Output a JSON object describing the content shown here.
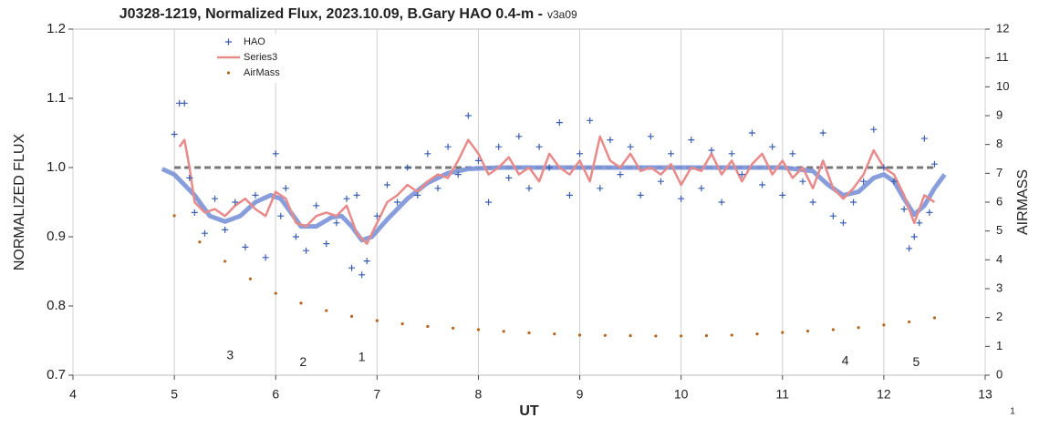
{
  "chart_data": {
    "type": "scatter",
    "title": "J0328-1219, Normalized Flux, 2023.10.09, B.Gary HAO 0.4-m -",
    "version": "v3a09",
    "x_label": "UT",
    "y_label": "NORMALIZED FLUX",
    "y2_label": "AIRMASS",
    "xlim": [
      4,
      13
    ],
    "xticks": [
      4,
      5,
      6,
      7,
      8,
      9,
      10,
      11,
      12,
      13
    ],
    "ylim": [
      0.7,
      1.2
    ],
    "yticks": [
      0.7,
      0.8,
      0.9,
      {
        "value": 1,
        "label": "1.0"
      },
      1.1,
      1.2
    ],
    "y2lim": [
      0,
      12
    ],
    "y2ticks": [
      0,
      1,
      2,
      3,
      4,
      5,
      6,
      7,
      8,
      9,
      10,
      11,
      12
    ],
    "grid": "x",
    "reference_line": 1,
    "legend": "upper left",
    "footer": "1",
    "annotations": [
      {
        "text": "3",
        "x": 5.55,
        "y": 0.728
      },
      {
        "text": "2",
        "x": 6.27,
        "y": 0.718
      },
      {
        "text": "1",
        "x": 6.85,
        "y": 0.725
      },
      {
        "text": "4",
        "x": 11.62,
        "y": 0.72
      },
      {
        "text": "5",
        "x": 12.32,
        "y": 0.718
      }
    ],
    "series": [
      {
        "name": "HAO",
        "color": "#3a5db0",
        "marker": "cross",
        "x": [
          5.0,
          5.05,
          5.1,
          5.15,
          5.2,
          5.3,
          5.4,
          5.5,
          5.6,
          5.7,
          5.8,
          5.9,
          6.0,
          6.05,
          6.1,
          6.2,
          6.3,
          6.4,
          6.5,
          6.6,
          6.7,
          6.75,
          6.8,
          6.85,
          6.9,
          7.0,
          7.1,
          7.2,
          7.3,
          7.4,
          7.5,
          7.6,
          7.7,
          7.8,
          7.9,
          8.0,
          8.1,
          8.2,
          8.3,
          8.4,
          8.5,
          8.6,
          8.7,
          8.8,
          8.9,
          9.0,
          9.1,
          9.2,
          9.3,
          9.4,
          9.5,
          9.6,
          9.7,
          9.8,
          9.9,
          10.0,
          10.1,
          10.2,
          10.3,
          10.4,
          10.5,
          10.6,
          10.7,
          10.8,
          10.9,
          11.0,
          11.1,
          11.2,
          11.3,
          11.4,
          11.5,
          11.6,
          11.7,
          11.8,
          11.9,
          12.0,
          12.1,
          12.2,
          12.25,
          12.3,
          12.35,
          12.4,
          12.45,
          12.5
        ],
        "values": [
          1.048,
          1.093,
          1.093,
          0.985,
          0.935,
          0.905,
          0.955,
          0.91,
          0.95,
          0.885,
          0.96,
          0.87,
          1.02,
          0.93,
          0.97,
          0.9,
          0.88,
          0.945,
          0.89,
          0.92,
          0.955,
          0.855,
          0.96,
          0.845,
          0.865,
          0.93,
          0.975,
          0.95,
          1.0,
          0.96,
          1.02,
          0.97,
          1.03,
          0.99,
          1.075,
          1.01,
          0.95,
          1.03,
          0.985,
          1.045,
          0.97,
          1.03,
          1.0,
          1.065,
          0.96,
          1.02,
          1.068,
          0.97,
          1.04,
          0.99,
          1.03,
          0.96,
          1.045,
          0.98,
          1.02,
          0.955,
          1.04,
          0.97,
          1.025,
          0.95,
          1.02,
          0.99,
          1.05,
          0.975,
          1.03,
          0.96,
          1.02,
          0.98,
          0.95,
          1.05,
          0.93,
          0.92,
          0.95,
          0.98,
          1.055,
          1.0,
          0.98,
          0.94,
          0.883,
          0.9,
          0.92,
          1.042,
          0.935,
          1.005
        ]
      },
      {
        "name": "Series3",
        "color": "#e88a8a",
        "marker": "line",
        "x": [
          5.05,
          5.1,
          5.15,
          5.2,
          5.3,
          5.4,
          5.5,
          5.6,
          5.7,
          5.8,
          5.9,
          6.0,
          6.1,
          6.2,
          6.3,
          6.4,
          6.5,
          6.6,
          6.7,
          6.8,
          6.9,
          7.0,
          7.1,
          7.2,
          7.3,
          7.4,
          7.5,
          7.6,
          7.7,
          7.8,
          7.9,
          8.0,
          8.1,
          8.2,
          8.3,
          8.4,
          8.5,
          8.6,
          8.7,
          8.8,
          8.9,
          9.0,
          9.1,
          9.2,
          9.3,
          9.4,
          9.5,
          9.6,
          9.7,
          9.8,
          9.9,
          10.0,
          10.1,
          10.2,
          10.3,
          10.4,
          10.5,
          10.6,
          10.7,
          10.8,
          10.9,
          11.0,
          11.1,
          11.2,
          11.3,
          11.4,
          11.5,
          11.6,
          11.7,
          11.8,
          11.9,
          12.0,
          12.1,
          12.2,
          12.3,
          12.4,
          12.5
        ],
        "values": [
          1.03,
          1.04,
          1.0,
          0.95,
          0.935,
          0.94,
          0.93,
          0.945,
          0.955,
          0.94,
          0.93,
          0.965,
          0.955,
          0.92,
          0.915,
          0.93,
          0.935,
          0.93,
          0.945,
          0.905,
          0.89,
          0.92,
          0.95,
          0.96,
          0.975,
          0.965,
          0.98,
          0.99,
          0.985,
          1.01,
          1.04,
          1.02,
          0.99,
          1.0,
          1.015,
          0.99,
          1.0,
          0.98,
          1.02,
          1.0,
          0.99,
          1.01,
          0.98,
          1.045,
          1.01,
          1.0,
          1.02,
          0.995,
          1.0,
          0.99,
          1.005,
          0.975,
          1.0,
          0.995,
          1.02,
          0.99,
          1.01,
          0.98,
          1.005,
          1.02,
          0.99,
          1.01,
          0.985,
          1.0,
          0.97,
          1.01,
          0.97,
          0.955,
          0.97,
          0.99,
          1.025,
          1.0,
          0.99,
          0.96,
          0.92,
          0.96,
          0.95
        ]
      },
      {
        "color": "#7b93d8",
        "marker": "thick-line",
        "x": [
          4.88,
          5.0,
          5.2,
          5.35,
          5.5,
          5.65,
          5.8,
          5.95,
          6.05,
          6.15,
          6.25,
          6.4,
          6.55,
          6.65,
          6.75,
          6.85,
          6.95,
          7.1,
          7.3,
          7.5,
          7.7,
          7.9,
          8.2,
          9.0,
          10.0,
          11.0,
          11.3,
          11.45,
          11.6,
          11.75,
          11.9,
          12.0,
          12.1,
          12.2,
          12.3,
          12.4,
          12.5,
          12.6
        ],
        "values": [
          0.998,
          0.99,
          0.96,
          0.93,
          0.922,
          0.93,
          0.95,
          0.96,
          0.955,
          0.935,
          0.915,
          0.915,
          0.928,
          0.93,
          0.915,
          0.895,
          0.9,
          0.925,
          0.955,
          0.978,
          0.992,
          0.998,
          1.0,
          1.0,
          1.0,
          1.0,
          0.995,
          0.975,
          0.96,
          0.965,
          0.985,
          0.99,
          0.98,
          0.955,
          0.932,
          0.945,
          0.97,
          0.99
        ]
      },
      {
        "name": "AirMass",
        "color": "#b5651d",
        "marker": "dot",
        "axis": "y2",
        "x": [
          5.0,
          5.25,
          5.5,
          5.75,
          6.0,
          6.25,
          6.5,
          6.75,
          7.0,
          7.25,
          7.5,
          7.75,
          8.0,
          8.25,
          8.5,
          8.75,
          9.0,
          9.25,
          9.5,
          9.75,
          10.0,
          10.25,
          10.5,
          10.75,
          11.0,
          11.25,
          11.5,
          11.75,
          12.0,
          12.25,
          12.5
        ],
        "values": [
          5.53,
          4.62,
          3.95,
          3.34,
          2.84,
          2.5,
          2.24,
          2.04,
          1.89,
          1.78,
          1.69,
          1.63,
          1.58,
          1.52,
          1.47,
          1.43,
          1.39,
          1.38,
          1.37,
          1.36,
          1.36,
          1.37,
          1.39,
          1.43,
          1.48,
          1.53,
          1.58,
          1.65,
          1.74,
          1.85,
          1.99
        ]
      }
    ]
  }
}
